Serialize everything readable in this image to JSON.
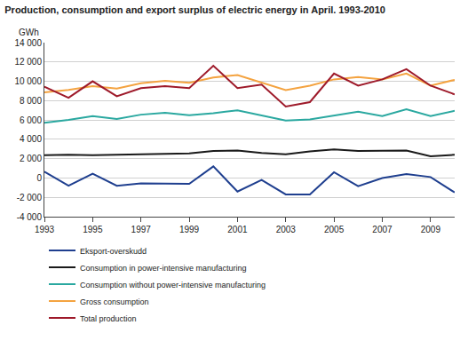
{
  "chart_data": {
    "type": "line",
    "title": "Production, consumption and export surplus of electric energy in April. 1993-2010",
    "ylabel": "GWh",
    "x": [
      1993,
      1994,
      1995,
      1996,
      1997,
      1998,
      1999,
      2000,
      2001,
      2002,
      2003,
      2004,
      2005,
      2006,
      2007,
      2008,
      2009,
      2010
    ],
    "series": [
      {
        "name": "Eksport-overskudd",
        "color": "#1f3f8f",
        "values": [
          650,
          -800,
          450,
          -800,
          -550,
          -600,
          -600,
          1200,
          -1400,
          -200,
          -1700,
          -1700,
          600,
          -850,
          0,
          400,
          100,
          -1500
        ]
      },
      {
        "name": "Consumption in power-intensive manufacturing",
        "color": "#1a1a1a",
        "values": [
          2350,
          2400,
          2350,
          2400,
          2450,
          2500,
          2550,
          2800,
          2850,
          2600,
          2450,
          2750,
          2950,
          2800,
          2850,
          2850,
          2250,
          2400
        ]
      },
      {
        "name": "Consumption without power-intensive manufacturing",
        "color": "#2aa8a0",
        "values": [
          5700,
          6000,
          6400,
          6100,
          6550,
          6750,
          6500,
          6700,
          7000,
          6500,
          5950,
          6050,
          6450,
          6850,
          6400,
          7100,
          6400,
          6950
        ]
      },
      {
        "name": "Gross consumption",
        "color": "#f4a340",
        "values": [
          8850,
          9100,
          9500,
          9250,
          9800,
          10050,
          9850,
          10400,
          10650,
          9900,
          9100,
          9550,
          10200,
          10450,
          10200,
          10800,
          9550,
          10150
        ]
      },
      {
        "name": "Total production",
        "color": "#9e1a2a",
        "values": [
          9450,
          8300,
          10000,
          8450,
          9300,
          9500,
          9300,
          11600,
          9300,
          9650,
          7400,
          7850,
          10800,
          9550,
          10200,
          11250,
          9550,
          8650
        ]
      }
    ],
    "xlim": [
      1993,
      2010
    ],
    "xticks": [
      1993,
      1995,
      1997,
      1999,
      2001,
      2003,
      2005,
      2007,
      2009
    ],
    "ylim": [
      -4000,
      14000
    ],
    "yticks": [
      {
        "value": -4000,
        "label": "-4 000"
      },
      {
        "value": -2000,
        "label": "-2 000"
      },
      0,
      {
        "value": 2000,
        "label": "2 000"
      },
      {
        "value": 4000,
        "label": "4 000"
      },
      {
        "value": 6000,
        "label": "6 000"
      },
      {
        "value": 8000,
        "label": "8 000"
      },
      {
        "value": 10000,
        "label": "10 000"
      },
      {
        "value": 12000,
        "label": "12 000"
      },
      {
        "value": 14000,
        "label": "14 000"
      }
    ],
    "grid": true,
    "legend": "bottom"
  }
}
